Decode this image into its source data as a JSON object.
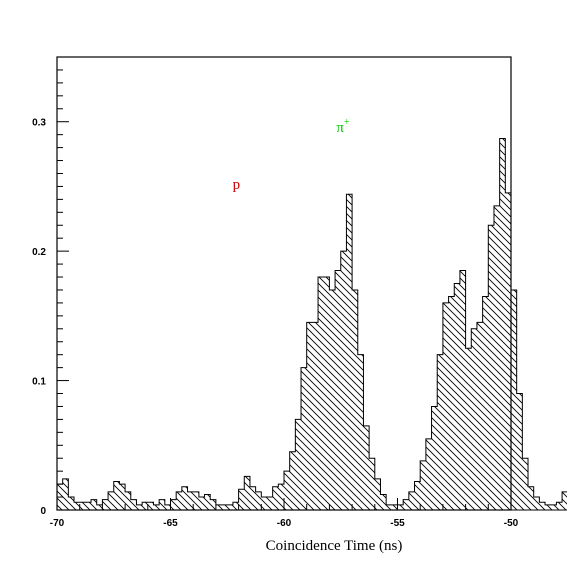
{
  "chart_data": {
    "type": "histogram",
    "xlabel": "Coincidence Time (ns)",
    "ylabel": "",
    "xlim": [
      -70,
      -50
    ],
    "ylim": [
      0,
      0.35
    ],
    "xticks": [
      "-70",
      "-65",
      "-60",
      "-55",
      "-50"
    ],
    "xtick_values": [
      -70,
      -65,
      -60,
      -55,
      -50
    ],
    "yticks": [
      "0",
      "0.1",
      "0.2",
      "0.3"
    ],
    "ytick_values": [
      0,
      0.1,
      0.2,
      0.3
    ],
    "grid": false,
    "fill": "diagonal-hatch",
    "bin_width": 0.25,
    "bin_start": -70,
    "values": [
      0.02,
      0.024,
      0.01,
      0.006,
      0.006,
      0.006,
      0.008,
      0.004,
      0.008,
      0.014,
      0.022,
      0.02,
      0.014,
      0.008,
      0.004,
      0.006,
      0.006,
      0.004,
      0.008,
      0.004,
      0.008,
      0.014,
      0.018,
      0.014,
      0.014,
      0.01,
      0.012,
      0.008,
      0.004,
      0.004,
      0.004,
      0.006,
      0.016,
      0.026,
      0.018,
      0.014,
      0.01,
      0.01,
      0.018,
      0.02,
      0.03,
      0.045,
      0.07,
      0.11,
      0.145,
      0.145,
      0.18,
      0.18,
      0.17,
      0.185,
      0.2,
      0.244,
      0.17,
      0.12,
      0.065,
      0.04,
      0.024,
      0.012,
      0.004,
      0.004,
      0.004,
      0.008,
      0.014,
      0.022,
      0.038,
      0.055,
      0.08,
      0.12,
      0.16,
      0.165,
      0.175,
      0.185,
      0.125,
      0.14,
      0.145,
      0.165,
      0.22,
      0.235,
      0.287,
      0.245,
      0.17,
      0.09,
      0.04,
      0.018,
      0.01,
      0.006,
      0.004,
      0.004,
      0.006,
      0.014,
      0.016,
      0.016,
      0.012,
      0.018,
      0.014,
      0.012,
      0.012,
      0.008,
      0.01,
      0.004,
      0.004,
      0.006,
      0.008,
      0.008,
      0.006,
      0.01,
      0.014,
      0.018,
      0.014,
      0.012,
      0.008,
      0.006,
      0.01,
      0.008,
      0.004,
      0.006,
      0.008,
      0.014,
      0.01,
      0.014,
      0.018,
      0.018,
      0.016,
      0.014,
      0.01,
      0.008,
      0.006,
      0.004,
      0.004,
      0.004,
      0.004,
      0.004
    ],
    "annotations": [
      {
        "text": "p",
        "x": -62.1,
        "y": 0.248,
        "color": "#cc0000"
      },
      {
        "text": "π",
        "sup": "+",
        "x": -57.4,
        "y": 0.292,
        "color": "#00cc00"
      }
    ]
  }
}
